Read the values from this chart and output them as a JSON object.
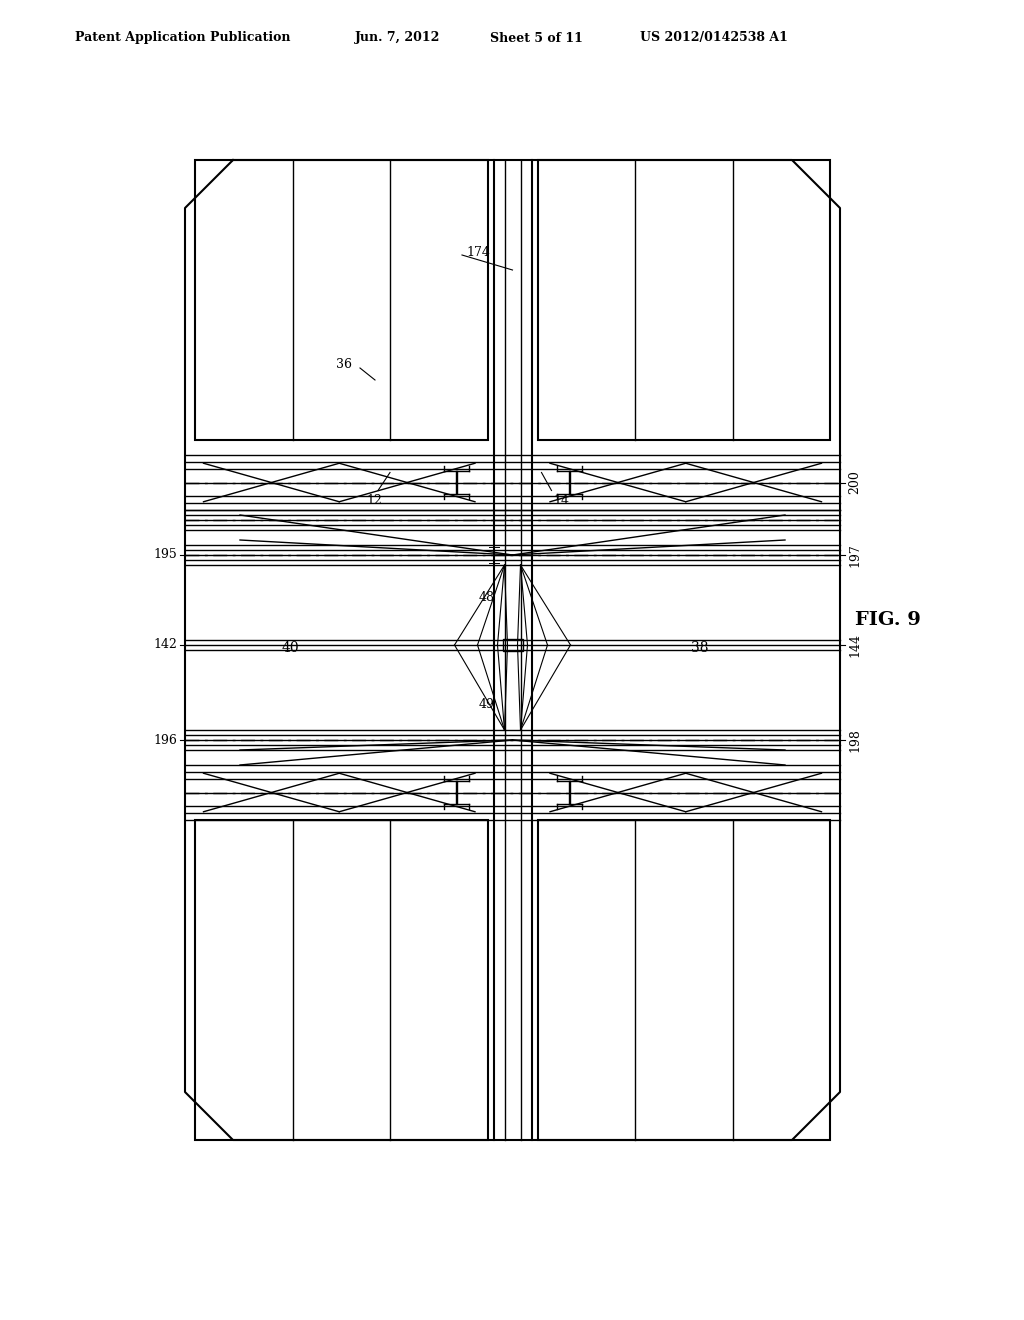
{
  "bg_color": "#ffffff",
  "line_color": "#000000",
  "header_text": "Patent Application Publication",
  "header_date": "Jun. 7, 2012",
  "header_sheet": "Sheet 5 of 11",
  "header_patent": "US 2012/0142538 A1",
  "fig_label": "FIG. 9"
}
